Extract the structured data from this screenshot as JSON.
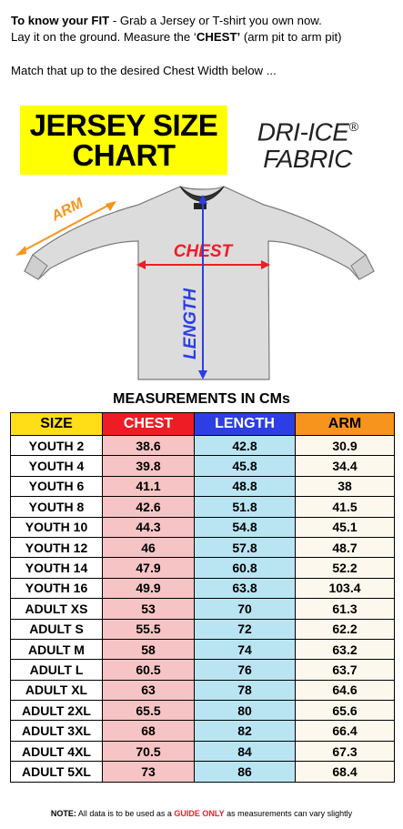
{
  "intro": {
    "line1_bold": "To know your FIT",
    "line1_rest": " - Grab a Jersey or T-shirt you own now.",
    "line2_a": "Lay it on the ground. Measure the ‘",
    "line2_bold": "CHEST’",
    "line2_b": " (arm pit to arm pit)",
    "line3": "Match that up to the desired Chest Width below ..."
  },
  "title": {
    "line1": "JERSEY SIZE",
    "line2": "CHART"
  },
  "fabric": {
    "line1": "DRI-ICE",
    "reg": "®",
    "line2": "FABRIC"
  },
  "diagram": {
    "arm": "ARM",
    "chest": "CHEST",
    "length": "LENGTH"
  },
  "heading": "MEASUREMENTS IN CMs",
  "colors": {
    "yellow": "#ffff00",
    "chest_red": "#ee1c25",
    "length_blue": "#2d3ee4",
    "arm_orange": "#f7941d"
  },
  "table": {
    "headers": [
      "SIZE",
      "CHEST",
      "LENGTH",
      "ARM"
    ],
    "rows": [
      [
        "YOUTH 2",
        "38.6",
        "42.8",
        "30.9"
      ],
      [
        "YOUTH 4",
        "39.8",
        "45.8",
        "34.4"
      ],
      [
        "YOUTH 6",
        "41.1",
        "48.8",
        "38"
      ],
      [
        "YOUTH 8",
        "42.6",
        "51.8",
        "41.5"
      ],
      [
        "YOUTH 10",
        "44.3",
        "54.8",
        "45.1"
      ],
      [
        "YOUTH 12",
        "46",
        "57.8",
        "48.7"
      ],
      [
        "YOUTH 14",
        "47.9",
        "60.8",
        "52.2"
      ],
      [
        "YOUTH 16",
        "49.9",
        "63.8",
        "103.4"
      ],
      [
        "ADULT XS",
        "53",
        "70",
        "61.3"
      ],
      [
        "ADULT S",
        "55.5",
        "72",
        "62.2"
      ],
      [
        "ADULT M",
        "58",
        "74",
        "63.2"
      ],
      [
        "ADULT L",
        "60.5",
        "76",
        "63.7"
      ],
      [
        "ADULT XL",
        "63",
        "78",
        "64.6"
      ],
      [
        "ADULT 2XL",
        "65.5",
        "80",
        "65.6"
      ],
      [
        "ADULT 3XL",
        "68",
        "82",
        "66.4"
      ],
      [
        "ADULT 4XL",
        "70.5",
        "84",
        "67.3"
      ],
      [
        "ADULT 5XL",
        "73",
        "86",
        "68.4"
      ]
    ]
  },
  "note": {
    "label": "NOTE:",
    "a": " All data is to be used as a ",
    "guide": "GUIDE ONLY",
    "b": " as measurements can vary slightly"
  }
}
